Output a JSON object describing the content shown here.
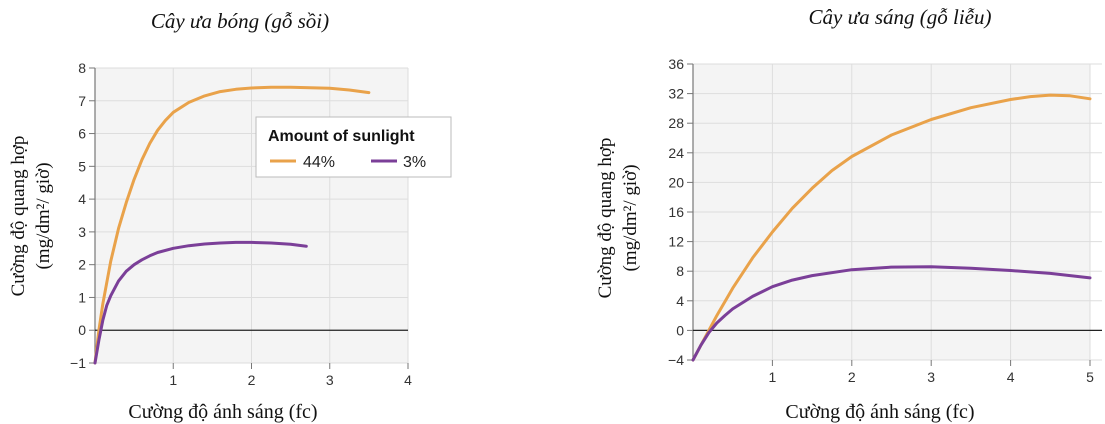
{
  "colors": {
    "orange": "#e9a24a",
    "purple": "#7b3f98",
    "grid": "#dddddd",
    "plot_bg": "#f4f4f4",
    "axis": "#777777"
  },
  "chart_data": [
    {
      "type": "line",
      "title": "Cây ưa bóng (gỗ sồi)",
      "xlabel": "Cường độ ánh sáng (fc)",
      "ylabel_line1": "Cường độ quang hợp",
      "ylabel_line2": "(mg/dm²/ giờ)",
      "xlim": [
        0,
        4
      ],
      "ylim": [
        -1,
        8
      ],
      "xticks": [
        1,
        2,
        3,
        4
      ],
      "yticks": [
        -1,
        0,
        1,
        2,
        3,
        4,
        5,
        6,
        7,
        8
      ],
      "grid": true,
      "legend": {
        "title": "Amount of sunlight",
        "placement": "right"
      },
      "series": [
        {
          "name": "44%",
          "color": "#e9a24a",
          "x": [
            0,
            0.05,
            0.1,
            0.2,
            0.3,
            0.4,
            0.5,
            0.6,
            0.7,
            0.8,
            0.9,
            1.0,
            1.2,
            1.4,
            1.6,
            1.8,
            2.0,
            2.25,
            2.5,
            2.75,
            3.0,
            3.25,
            3.5
          ],
          "y": [
            -1,
            0.0,
            0.8,
            2.1,
            3.1,
            3.9,
            4.6,
            5.2,
            5.7,
            6.1,
            6.4,
            6.65,
            6.95,
            7.15,
            7.28,
            7.35,
            7.39,
            7.41,
            7.41,
            7.4,
            7.38,
            7.33,
            7.25
          ]
        },
        {
          "name": "3%",
          "color": "#7b3f98",
          "x": [
            0,
            0.05,
            0.1,
            0.15,
            0.2,
            0.3,
            0.4,
            0.5,
            0.6,
            0.7,
            0.8,
            1.0,
            1.2,
            1.4,
            1.6,
            1.8,
            2.0,
            2.25,
            2.5,
            2.7
          ],
          "y": [
            -1,
            -0.3,
            0.3,
            0.75,
            1.05,
            1.5,
            1.8,
            2.0,
            2.15,
            2.27,
            2.37,
            2.5,
            2.58,
            2.63,
            2.66,
            2.68,
            2.68,
            2.66,
            2.62,
            2.56
          ]
        }
      ]
    },
    {
      "type": "line",
      "title": "Cây ưa sáng (gỗ liễu)",
      "xlabel": "Cường độ ánh sáng (fc)",
      "ylabel_line1": "Cường độ quang hợp",
      "ylabel_line2": "(mg/dm²/ giờ)",
      "xlim": [
        0,
        5
      ],
      "ylim": [
        -4,
        36
      ],
      "xticks": [
        1,
        2,
        3,
        4,
        5
      ],
      "yticks": [
        -4,
        0,
        4,
        8,
        12,
        16,
        20,
        24,
        28,
        32,
        36
      ],
      "grid": true,
      "series": [
        {
          "name": "44%",
          "color": "#e9a24a",
          "x": [
            0,
            0.1,
            0.2,
            0.3,
            0.5,
            0.75,
            1.0,
            1.25,
            1.5,
            1.75,
            2.0,
            2.5,
            3.0,
            3.5,
            4.0,
            4.25,
            4.5,
            4.75,
            5.0
          ],
          "y": [
            -4,
            -2,
            0,
            2,
            5.7,
            9.8,
            13.3,
            16.5,
            19.2,
            21.6,
            23.5,
            26.4,
            28.5,
            30.1,
            31.2,
            31.6,
            31.8,
            31.7,
            31.3
          ]
        },
        {
          "name": "3%",
          "color": "#7b3f98",
          "x": [
            0,
            0.1,
            0.2,
            0.3,
            0.4,
            0.5,
            0.75,
            1.0,
            1.25,
            1.5,
            2.0,
            2.5,
            3.0,
            3.5,
            4.0,
            4.5,
            5.0
          ],
          "y": [
            -4,
            -2,
            -0.3,
            1.0,
            2.0,
            2.9,
            4.6,
            5.9,
            6.8,
            7.4,
            8.2,
            8.55,
            8.6,
            8.4,
            8.1,
            7.7,
            7.1
          ]
        }
      ]
    }
  ]
}
